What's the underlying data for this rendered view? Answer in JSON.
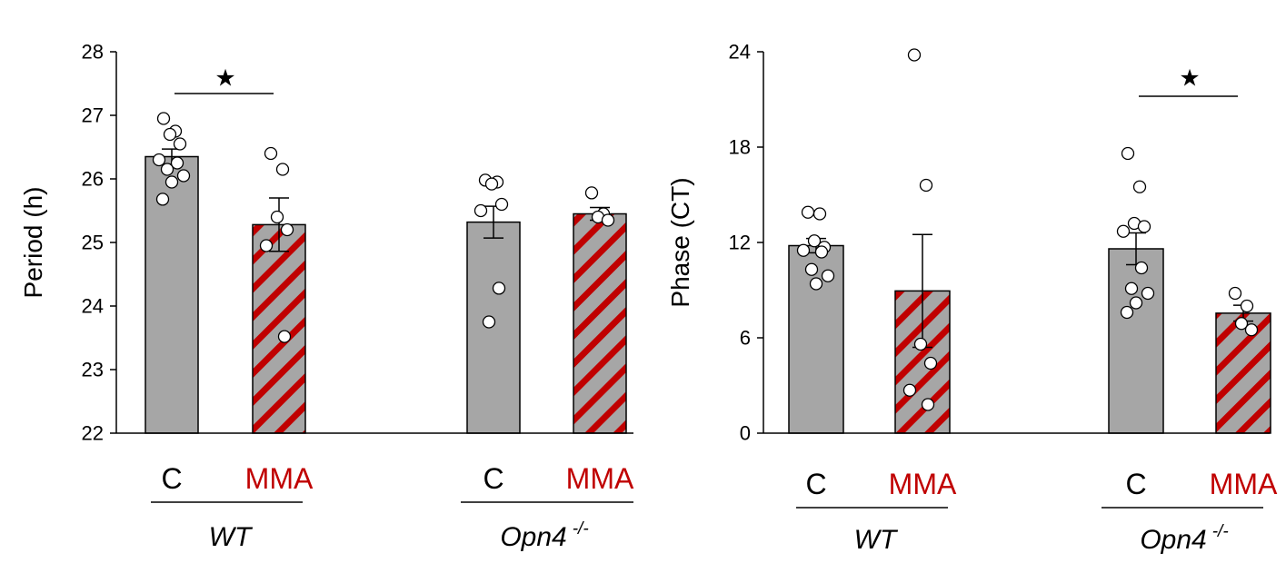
{
  "colors": {
    "control_fill": "#a6a6a6",
    "mma_stripe": "#c00000",
    "mma_text": "#c00000",
    "axis": "#000000",
    "point_fill": "#ffffff"
  },
  "chart_data": [
    {
      "type": "bar",
      "ylabel": "Period (h)",
      "ylim": [
        22,
        28
      ],
      "yticks": [
        22,
        23,
        24,
        25,
        26,
        27,
        28
      ],
      "categories": [
        "C",
        "MMA",
        "C",
        "MMA"
      ],
      "groups": [
        {
          "label": "WT",
          "sup": ""
        },
        {
          "label": "Opn4",
          "sup": "-/-"
        }
      ],
      "values": [
        26.35,
        25.28,
        25.32,
        25.45
      ],
      "errors": [
        0.12,
        0.42,
        0.25,
        0.1
      ],
      "points": [
        [
          26.95,
          26.75,
          26.7,
          26.55,
          26.3,
          26.25,
          26.15,
          26.05,
          25.95,
          25.68
        ],
        [
          26.4,
          26.15,
          25.4,
          25.2,
          24.95,
          23.52
        ],
        [
          25.98,
          25.95,
          25.92,
          25.6,
          25.5,
          24.28,
          23.75
        ],
        [
          25.78,
          25.45,
          25.4,
          25.35
        ]
      ],
      "significance": [
        {
          "from": 0,
          "to": 1,
          "label": "★"
        }
      ]
    },
    {
      "type": "bar",
      "ylabel": "Phase (CT)",
      "ylim": [
        0,
        24
      ],
      "yticks": [
        0,
        6,
        12,
        18,
        24
      ],
      "categories": [
        "C",
        "MMA",
        "C",
        "MMA"
      ],
      "groups": [
        {
          "label": "WT",
          "sup": ""
        },
        {
          "label": "Opn4",
          "sup": "-/-"
        }
      ],
      "values": [
        11.8,
        8.95,
        11.6,
        7.55
      ],
      "errors": [
        0.45,
        3.55,
        1.0,
        0.5
      ],
      "points": [
        [
          13.9,
          13.8,
          12.1,
          11.7,
          11.5,
          11.4,
          10.3,
          9.9,
          9.4
        ],
        [
          23.8,
          15.6,
          5.6,
          4.4,
          2.7,
          1.8
        ],
        [
          17.6,
          15.5,
          13.2,
          13.0,
          12.7,
          10.4,
          9.1,
          8.8,
          8.2,
          7.6
        ],
        [
          8.8,
          8.0,
          6.9,
          6.5
        ]
      ],
      "significance": [
        {
          "from": 2,
          "to": 3,
          "label": "★"
        }
      ]
    }
  ]
}
